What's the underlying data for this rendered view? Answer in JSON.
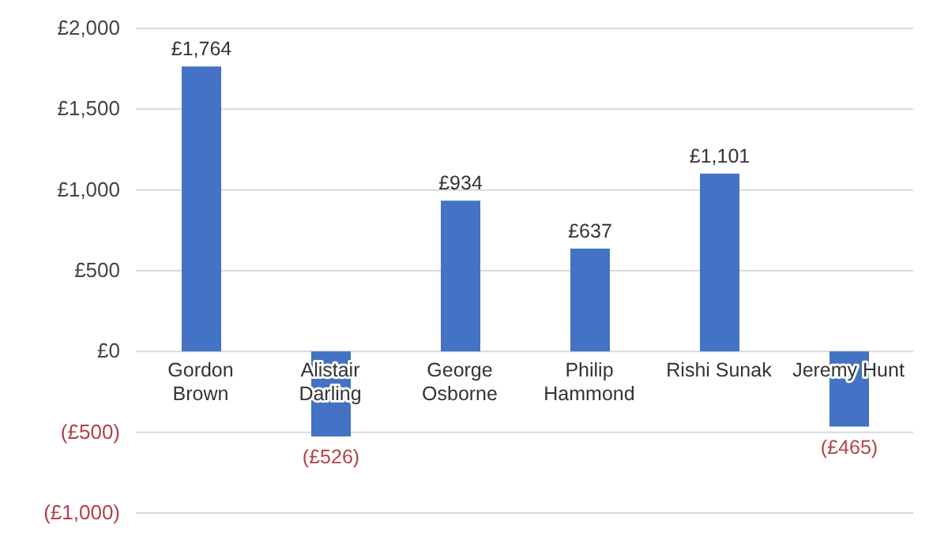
{
  "chart_data": {
    "type": "bar",
    "categories": [
      "Gordon Brown",
      "Alistair Darling",
      "George Osborne",
      "Philip Hammond",
      "Rishi Sunak",
      "Jeremy Hunt"
    ],
    "values": [
      1764,
      -526,
      934,
      637,
      1101,
      -465
    ],
    "value_labels": [
      "£1,764",
      "(£526)",
      "£934",
      "£637",
      "£1,101",
      "(£465)"
    ],
    "color": "#4472c4",
    "ylim": [
      -1000,
      2000
    ],
    "yticks": [
      {
        "value": -1000,
        "label": "(£1,000)"
      },
      {
        "value": -500,
        "label": "(£500)"
      },
      {
        "value": 0,
        "label": "£0"
      },
      {
        "value": 500,
        "label": "£500"
      },
      {
        "value": 1000,
        "label": "£1,000"
      },
      {
        "value": 1500,
        "label": "£1,500"
      },
      {
        "value": 2000,
        "label": "£2,000"
      }
    ],
    "grid": "y"
  }
}
